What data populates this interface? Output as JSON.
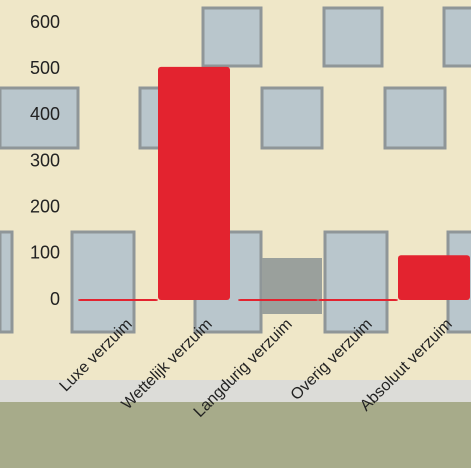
{
  "chart_data": {
    "type": "bar",
    "categories": [
      "Luxe verzuim",
      "Wettelijk verzuim",
      "Langdurig verzuim",
      "Overig verzuim",
      "Absoluut verzuim"
    ],
    "values": [
      0,
      505,
      0,
      0,
      97
    ],
    "color": "#e3232f",
    "ylim": [
      0,
      600
    ],
    "yticks": [
      0,
      100,
      200,
      300,
      400,
      500,
      600
    ]
  }
}
